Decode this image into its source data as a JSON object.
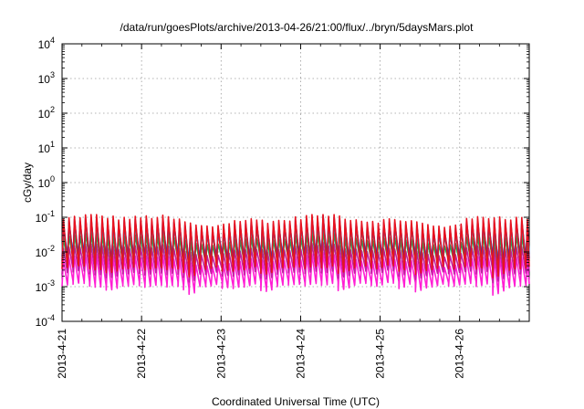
{
  "chart_data": {
    "type": "line",
    "title": "/data/run/goesPlots/archive/2013-04-26/21:00/flux/../bryn/5daysMars.plot",
    "xlabel": "Coordinated Universal Time (UTC)",
    "ylabel": "cGy/day",
    "yscale": "log",
    "ylim": [
      0.0001,
      10000
    ],
    "xlim": [
      "2013-04-21 00:00",
      "2013-04-26 21:00"
    ],
    "x_tick_labels": [
      "2013-4-21",
      "2013-4-22",
      "2013-4-23",
      "2013-4-24",
      "2013-4-25",
      "2013-4-26"
    ],
    "y_ticks": [
      {
        "value": 0.0001,
        "base": "10",
        "exp": "-4"
      },
      {
        "value": 0.001,
        "base": "10",
        "exp": "-3"
      },
      {
        "value": 0.01,
        "base": "10",
        "exp": "-2"
      },
      {
        "value": 0.1,
        "base": "10",
        "exp": "-1"
      },
      {
        "value": 1,
        "base": "10",
        "exp": "0"
      },
      {
        "value": 10,
        "base": "10",
        "exp": "1"
      },
      {
        "value": 100,
        "base": "10",
        "exp": "2"
      },
      {
        "value": 1000,
        "base": "10",
        "exp": "3"
      },
      {
        "value": 10000,
        "base": "10",
        "exp": "4"
      }
    ],
    "grid": true,
    "pattern": {
      "description": "sawtooth orbital modulation, ~14 cycles per day",
      "cycles_per_day": 14.4,
      "envelope_series_peak_range_cgy_per_day": [
        0.05,
        0.1
      ],
      "envelope_series_trough_range_cgy_per_day": [
        0.0008,
        0.002
      ]
    },
    "series": [
      {
        "color": "#e8121f",
        "peak": 0.085,
        "trough": 0.0035
      },
      {
        "color": "#2a2fb8",
        "peak": 0.07,
        "trough": 0.006
      },
      {
        "color": "#1aa6c8",
        "peak": 0.045,
        "trough": 0.008
      },
      {
        "color": "#1fa85a",
        "peak": 0.025,
        "trough": 0.005
      },
      {
        "color": "#c01fa0",
        "peak": 0.012,
        "trough": 0.0025
      },
      {
        "color": "#ff1fd4",
        "peak": 0.006,
        "trough": 0.0011
      }
    ]
  }
}
